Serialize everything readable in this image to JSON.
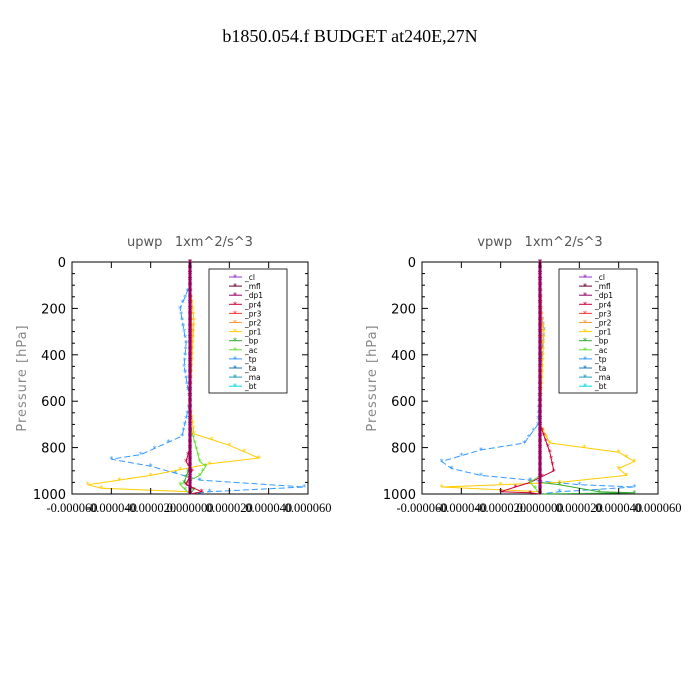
{
  "figure_title": "b1850.054.f  BUDGET at240E,27N",
  "legend_entries": [
    "_cl",
    "_mfl",
    "_dp1",
    "_pr4",
    "_pr3",
    "_pr2",
    "_pr1",
    "_bp",
    "_ac",
    "_tp",
    "_ta",
    "_ma",
    "_bt"
  ],
  "series_colors": {
    "_cl": "#9933cc",
    "_mfl": "#660033",
    "_dp1": "#990066",
    "_pr4": "#cc0033",
    "_pr3": "#ff3333",
    "_pr2": "#ff9933",
    "_pr1": "#ffcc00",
    "_bp": "#33aa33",
    "_ac": "#66dd33",
    "_tp": "#3399ff",
    "_ta": "#2277bb",
    "_ma": "#2299bb",
    "_bt": "#00dddd"
  },
  "chart_data": [
    {
      "type": "line",
      "title": "upwp   1xm^2/s^3",
      "ylabel": "Pressure [hPa]",
      "xlabel": "",
      "y_axis": "pressure, inverted",
      "ylim": [
        1000,
        0
      ],
      "xlim": [
        -6e-05,
        6e-05
      ],
      "ytick_labels": [
        "0",
        "200",
        "400",
        "600",
        "800",
        "1000"
      ],
      "xtick_labels": [
        "-0.000060",
        "-0.000040",
        "-0.000020",
        "0.000000",
        "0.000020",
        "0.000040",
        "0.000060"
      ],
      "legend_position": "top-right",
      "grid": false,
      "series": [
        {
          "name": "_tp",
          "points": [
            [
              0,
              0
            ],
            [
              0,
              100
            ],
            [
              -5e-06,
              200
            ],
            [
              -2e-06,
              350
            ],
            [
              -3e-06,
              450
            ],
            [
              0,
              600
            ],
            [
              -4e-06,
              750
            ],
            [
              -2.5e-05,
              830
            ],
            [
              -4e-05,
              850
            ],
            [
              -2e-05,
              880
            ],
            [
              5e-06,
              940
            ],
            [
              5.8e-05,
              970
            ],
            [
              1e-05,
              990
            ],
            [
              0,
              1000
            ]
          ]
        },
        {
          "name": "_pr1",
          "points": [
            [
              0,
              0
            ],
            [
              0,
              100
            ],
            [
              2e-06,
              250
            ],
            [
              1e-06,
              420
            ],
            [
              0,
              600
            ],
            [
              2e-06,
              740
            ],
            [
              2e-05,
              790
            ],
            [
              3.5e-05,
              845
            ],
            [
              1e-05,
              870
            ],
            [
              -2e-05,
              920
            ],
            [
              -5.2e-05,
              960
            ],
            [
              -4.5e-05,
              975
            ],
            [
              0,
              990
            ],
            [
              0,
              1000
            ]
          ]
        },
        {
          "name": "_ac",
          "points": [
            [
              0,
              0
            ],
            [
              0,
              700
            ],
            [
              5e-06,
              860
            ],
            [
              8e-06,
              880
            ],
            [
              5e-06,
              920
            ],
            [
              -5e-06,
              960
            ],
            [
              0,
              1000
            ]
          ]
        },
        {
          "name": "_bp",
          "points": [
            [
              0,
              0
            ],
            [
              0,
              880
            ],
            [
              -3e-06,
              950
            ],
            [
              2e-06,
              980
            ],
            [
              0,
              1000
            ]
          ]
        },
        {
          "name": "_pr4",
          "points": [
            [
              0,
              0
            ],
            [
              0,
              800
            ],
            [
              -2e-06,
              860
            ],
            [
              1e-06,
              900
            ],
            [
              -2e-06,
              960
            ],
            [
              6e-06,
              990
            ],
            [
              0,
              1000
            ]
          ]
        },
        {
          "name": "_pr2",
          "points": [
            [
              0,
              0
            ],
            [
              1e-06,
              300
            ],
            [
              0,
              600
            ],
            [
              0,
              1000
            ]
          ]
        },
        {
          "name": "_cl",
          "points": [
            [
              0,
              0
            ],
            [
              0,
              1000
            ]
          ]
        },
        {
          "name": "_mfl",
          "points": [
            [
              0,
              0
            ],
            [
              0,
              1000
            ]
          ]
        },
        {
          "name": "_dp1",
          "points": [
            [
              0,
              0
            ],
            [
              0,
              1000
            ]
          ]
        }
      ]
    },
    {
      "type": "line",
      "title": "vpwp   1xm^2/s^3",
      "ylabel": "Pressure [hPa]",
      "xlabel": "",
      "y_axis": "pressure, inverted",
      "ylim": [
        1000,
        0
      ],
      "xlim": [
        -6e-05,
        6e-05
      ],
      "ytick_labels": [
        "0",
        "200",
        "400",
        "600",
        "800",
        "1000"
      ],
      "xtick_labels": [
        "-0.000060",
        "-0.000040",
        "-0.000020",
        "0.000000",
        "0.000020",
        "0.000040",
        "0.000060"
      ],
      "legend_position": "top-right",
      "grid": false,
      "series": [
        {
          "name": "_tp",
          "points": [
            [
              0,
              0
            ],
            [
              0,
              200
            ],
            [
              2e-06,
              290
            ],
            [
              0,
              500
            ],
            [
              -1e-06,
              700
            ],
            [
              -8e-06,
              780
            ],
            [
              -3e-05,
              810
            ],
            [
              -5e-05,
              860
            ],
            [
              -4.5e-05,
              890
            ],
            [
              -3e-05,
              920
            ],
            [
              2e-05,
              960
            ],
            [
              4.8e-05,
              970
            ],
            [
              1e-05,
              990
            ],
            [
              0,
              1000
            ]
          ]
        },
        {
          "name": "_pr1",
          "points": [
            [
              0,
              0
            ],
            [
              0,
              200
            ],
            [
              2e-06,
              300
            ],
            [
              0,
              700
            ],
            [
              5e-06,
              780
            ],
            [
              4e-05,
              820
            ],
            [
              4.8e-05,
              860
            ],
            [
              4e-05,
              890
            ],
            [
              4.4e-05,
              920
            ],
            [
              1e-05,
              950
            ],
            [
              -2e-05,
              960
            ],
            [
              -5e-05,
              970
            ],
            [
              0,
              990
            ],
            [
              0,
              1000
            ]
          ]
        },
        {
          "name": "_bp",
          "points": [
            [
              0,
              0
            ],
            [
              0,
              950
            ],
            [
              1e-05,
              960
            ],
            [
              3e-05,
              990
            ],
            [
              4.8e-05,
              995
            ],
            [
              0,
              1000
            ]
          ]
        },
        {
          "name": "_pr4",
          "points": [
            [
              0,
              0
            ],
            [
              0,
              700
            ],
            [
              5e-06,
              820
            ],
            [
              7e-06,
              900
            ],
            [
              -5e-06,
              950
            ],
            [
              -2e-05,
              990
            ],
            [
              -5e-06,
              995
            ],
            [
              0,
              1000
            ]
          ]
        },
        {
          "name": "_ac",
          "points": [
            [
              0,
              0
            ],
            [
              0,
              920
            ],
            [
              -5e-06,
              950
            ],
            [
              0,
              1000
            ]
          ]
        },
        {
          "name": "_pr2",
          "points": [
            [
              0,
              0
            ],
            [
              1e-06,
              250
            ],
            [
              0,
              600
            ],
            [
              0,
              1000
            ]
          ]
        },
        {
          "name": "_cl",
          "points": [
            [
              0,
              0
            ],
            [
              0,
              1000
            ]
          ]
        },
        {
          "name": "_mfl",
          "points": [
            [
              0,
              0
            ],
            [
              0,
              1000
            ]
          ]
        },
        {
          "name": "_dp1",
          "points": [
            [
              0,
              0
            ],
            [
              0,
              1000
            ]
          ]
        }
      ]
    }
  ]
}
